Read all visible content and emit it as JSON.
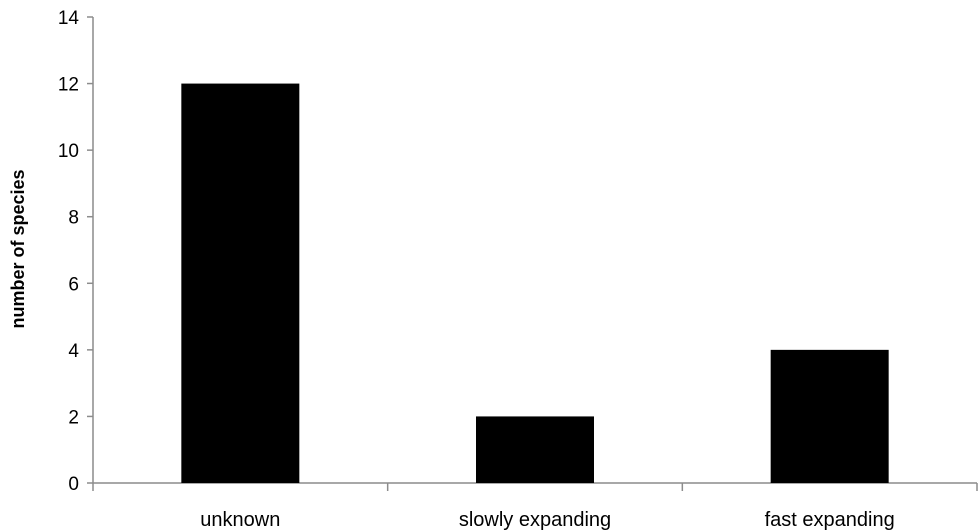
{
  "chart_data": {
    "type": "bar",
    "title": "",
    "xlabel": "",
    "ylabel": "number of species",
    "categories": [
      "unknown",
      "slowly expanding",
      "fast expanding"
    ],
    "values": [
      12,
      2,
      4
    ],
    "ylim": [
      0,
      14
    ],
    "yticks": [
      0,
      2,
      4,
      6,
      8,
      10,
      12,
      14
    ],
    "grid": false,
    "legend": "none",
    "bar_color": "#000000",
    "axis_color": "#8c8c8c"
  }
}
